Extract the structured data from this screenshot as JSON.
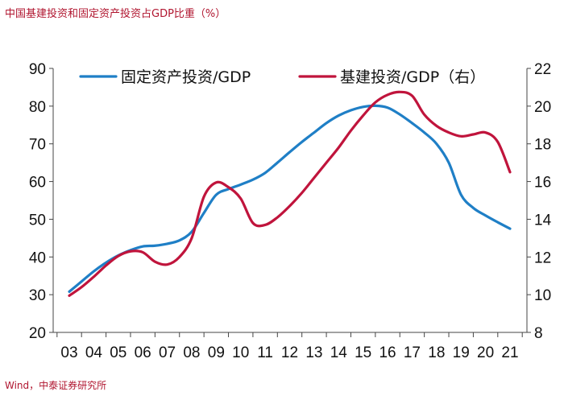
{
  "header": {
    "title": "中国基建投资和固定资产投资占GDP比重（%）"
  },
  "footer": {
    "source": "Wind，中泰证券研究所"
  },
  "chart_data": {
    "type": "line",
    "title": "中国基建投资和固定资产投资占GDP比重（%）",
    "source": "Wind，中泰证券研究所",
    "x_labels": [
      "03",
      "04",
      "05",
      "06",
      "07",
      "08",
      "09",
      "10",
      "11",
      "12",
      "13",
      "14",
      "15",
      "16",
      "17",
      "18",
      "19",
      "20",
      "21"
    ],
    "x": [
      3,
      3.5,
      4,
      4.5,
      5,
      5.5,
      6,
      6.5,
      7,
      7.5,
      8,
      8.5,
      9,
      9.5,
      10,
      10.5,
      11,
      11.5,
      12,
      12.5,
      13,
      13.5,
      14,
      14.5,
      15,
      15.5,
      16,
      16.5,
      17,
      17.5,
      18,
      18.5,
      19,
      19.5,
      20,
      20.5,
      21
    ],
    "left_axis": {
      "ylim": [
        20,
        90
      ],
      "ticks": [
        20,
        30,
        40,
        50,
        60,
        70,
        80,
        90
      ]
    },
    "right_axis": {
      "ylim": [
        8,
        22
      ],
      "ticks": [
        8,
        10,
        12,
        14,
        16,
        18,
        20,
        22
      ]
    },
    "legend_position": "top",
    "series": [
      {
        "name": "固定资产投资/GDP",
        "axis": "left",
        "color": "#1f7fc6",
        "values": [
          30.8,
          33.5,
          36.2,
          38.5,
          40.4,
          41.8,
          42.8,
          43.0,
          43.5,
          44.4,
          46.7,
          51.7,
          56.5,
          58.0,
          59.2,
          60.5,
          62.3,
          65.0,
          67.8,
          70.5,
          73.0,
          75.5,
          77.5,
          78.9,
          79.8,
          80.1,
          79.6,
          77.8,
          75.5,
          73.0,
          70.0,
          65.0,
          56.5,
          53.0,
          51.0,
          49.2,
          47.5
        ]
      },
      {
        "name": "基建投资/GDP（右）",
        "axis": "right",
        "color": "#c0143c",
        "values": [
          9.95,
          10.4,
          10.95,
          11.55,
          12.05,
          12.3,
          12.25,
          11.75,
          11.6,
          12.0,
          13.0,
          15.2,
          15.95,
          15.7,
          15.1,
          13.8,
          13.7,
          14.1,
          14.7,
          15.4,
          16.2,
          17.0,
          17.8,
          18.7,
          19.5,
          20.2,
          20.6,
          20.75,
          20.55,
          19.55,
          18.95,
          18.6,
          18.4,
          18.5,
          18.6,
          18.1,
          16.5
        ]
      }
    ]
  }
}
